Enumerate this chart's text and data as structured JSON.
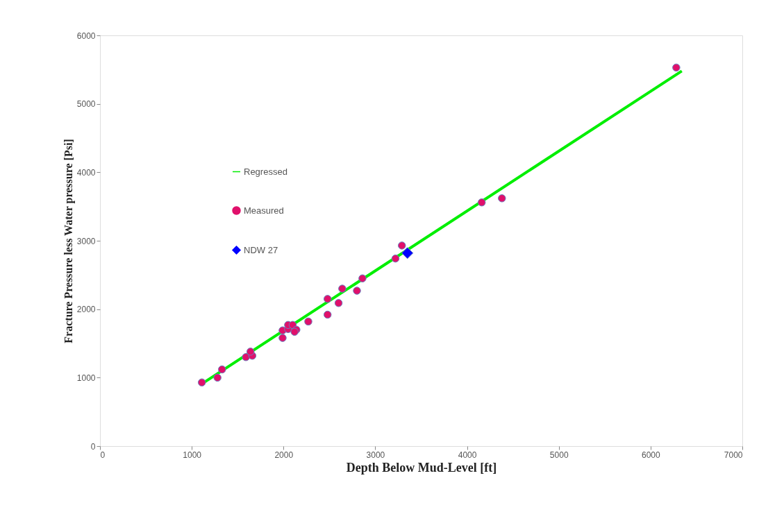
{
  "chart_data": {
    "type": "scatter",
    "xlabel": "Depth Below Mud-Level [ft]",
    "ylabel": "Fracture Pressure less Water pressure [Psi]",
    "xlim": [
      0,
      7000
    ],
    "xticks": [
      0,
      1000,
      2000,
      3000,
      4000,
      5000,
      6000,
      7000
    ],
    "ylim": [
      0,
      6000
    ],
    "yticks": [
      0,
      1000,
      2000,
      3000,
      4000,
      5000,
      6000
    ],
    "grid": false,
    "legend": "top left",
    "series": [
      {
        "name": "Regressed",
        "type": "line",
        "color": "#00ee00",
        "marker": "none",
        "line_style": "solid",
        "x": [
          1100,
          6340
        ],
        "values": [
          900,
          5480
        ]
      },
      {
        "name": "Measured",
        "color": "#e0106b",
        "marker": "circle",
        "x": [
          1110,
          1280,
          1330,
          1590,
          1660,
          1640,
          1990,
          1990,
          2050,
          2050,
          2100,
          2140,
          2120,
          2270,
          2480,
          2480,
          2600,
          2640,
          2800,
          2860,
          3220,
          3290,
          4160,
          4380,
          6280
        ],
        "values": [
          930,
          1000,
          1120,
          1300,
          1320,
          1380,
          1580,
          1690,
          1710,
          1770,
          1770,
          1700,
          1670,
          1820,
          1920,
          2150,
          2090,
          2300,
          2270,
          2450,
          2740,
          2930,
          3560,
          3620,
          5530
        ]
      },
      {
        "name": "NDW 27",
        "color": "#0000ff",
        "marker": "diamond",
        "x": [
          3350
        ],
        "values": [
          2820
        ]
      }
    ]
  }
}
